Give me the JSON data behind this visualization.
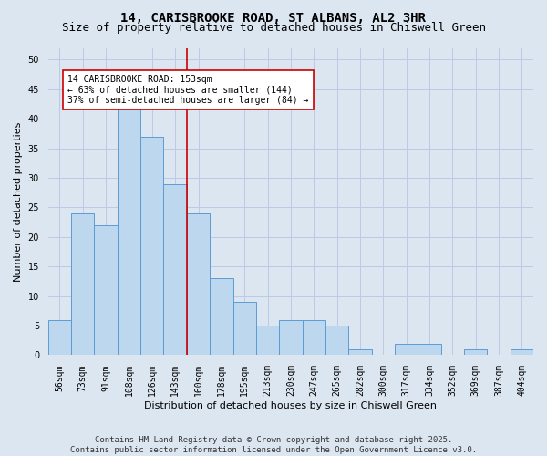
{
  "title_line1": "14, CARISBROOKE ROAD, ST ALBANS, AL2 3HR",
  "title_line2": "Size of property relative to detached houses in Chiswell Green",
  "xlabel": "Distribution of detached houses by size in Chiswell Green",
  "ylabel": "Number of detached properties",
  "bar_labels": [
    "56sqm",
    "73sqm",
    "91sqm",
    "108sqm",
    "126sqm",
    "143sqm",
    "160sqm",
    "178sqm",
    "195sqm",
    "213sqm",
    "230sqm",
    "247sqm",
    "265sqm",
    "282sqm",
    "300sqm",
    "317sqm",
    "334sqm",
    "352sqm",
    "369sqm",
    "387sqm",
    "404sqm"
  ],
  "bar_values": [
    6,
    24,
    22,
    42,
    37,
    29,
    24,
    13,
    9,
    5,
    6,
    6,
    5,
    1,
    0,
    2,
    2,
    0,
    1,
    0,
    1
  ],
  "bar_color": "#bdd7ee",
  "bar_edge_color": "#5b9bd5",
  "grid_color": "#c0c8e8",
  "background_color": "#dce6f1",
  "red_line_x": 5.5,
  "annotation_title": "14 CARISBROOKE ROAD: 153sqm",
  "annotation_line1": "← 63% of detached houses are smaller (144)",
  "annotation_line2": "37% of semi-detached houses are larger (84) →",
  "annotation_box_color": "#ffffff",
  "annotation_box_edge": "#cc0000",
  "red_line_color": "#cc0000",
  "ylim": [
    0,
    52
  ],
  "yticks": [
    0,
    5,
    10,
    15,
    20,
    25,
    30,
    35,
    40,
    45,
    50
  ],
  "footer_line1": "Contains HM Land Registry data © Crown copyright and database right 2025.",
  "footer_line2": "Contains public sector information licensed under the Open Government Licence v3.0.",
  "title_fontsize": 10,
  "subtitle_fontsize": 9,
  "axis_label_fontsize": 8,
  "tick_fontsize": 7,
  "annotation_fontsize": 7,
  "footer_fontsize": 6.5
}
